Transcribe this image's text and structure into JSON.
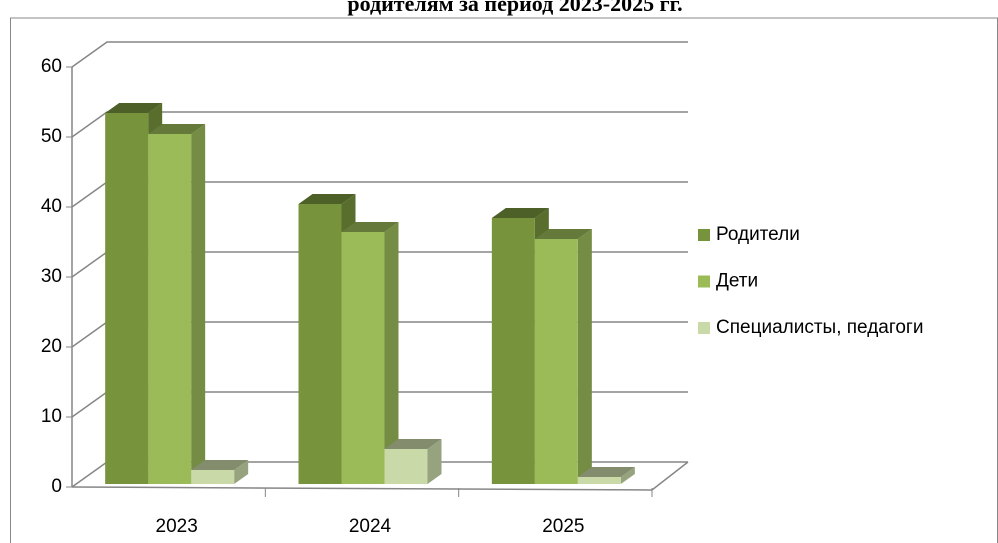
{
  "chart_data": {
    "type": "bar3d",
    "title": "родителям за период 2023-2025 гг.",
    "categories": [
      "2023",
      "2024",
      "2025"
    ],
    "series": [
      {
        "name": "Родители",
        "color": "#77933c",
        "values": [
          53,
          40,
          38
        ]
      },
      {
        "name": "Дети",
        "color": "#9bbb59",
        "values": [
          50,
          36,
          35
        ]
      },
      {
        "name": "Специалисты, педагоги",
        "color": "#c9d9a8",
        "values": [
          2,
          5,
          1
        ]
      }
    ],
    "ylim": [
      0,
      60
    ],
    "yticks": [
      0,
      10,
      20,
      30,
      40,
      50,
      60
    ],
    "grid": true,
    "legend": "right"
  }
}
